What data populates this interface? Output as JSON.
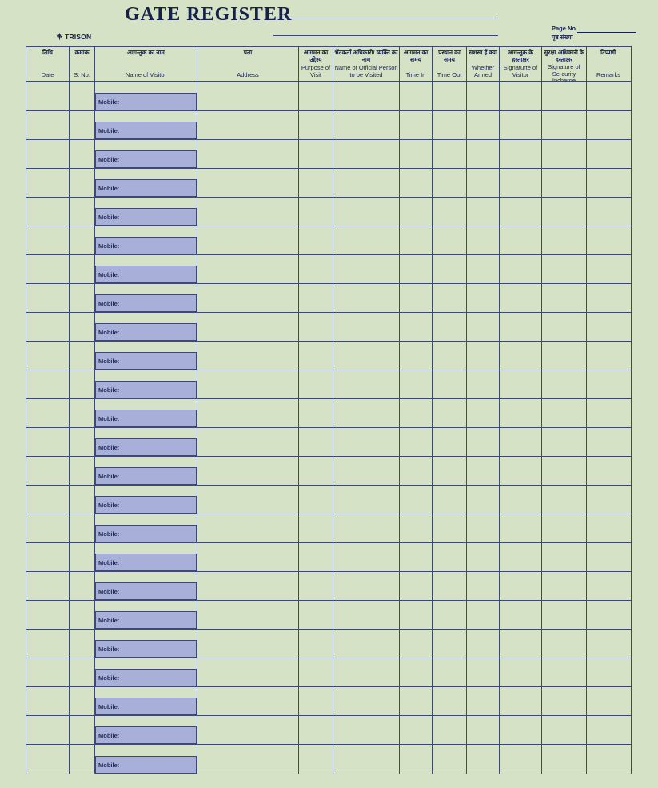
{
  "page": {
    "title": "GATE REGISTER",
    "brand": "TRISON",
    "page_no_label": "Page No.",
    "page_no_label_hindi": "पृष्ठ संख्या"
  },
  "table": {
    "columns": [
      {
        "hi": "तिथि",
        "en": "Date"
      },
      {
        "hi": "क्रमांक",
        "en": "S. No."
      },
      {
        "hi": "आगन्तुक का नाम",
        "en": "Name of Visitor"
      },
      {
        "hi": "पता",
        "en": "Address"
      },
      {
        "hi": "आगमन का उद्देश्य",
        "en": "Purpose of Visit"
      },
      {
        "hi": "भेंटकर्ता अधिकारी/ व्यक्ति का नाम",
        "en": "Name of Official Person to be Visited"
      },
      {
        "hi": "आगमन का समय",
        "en": "Time In"
      },
      {
        "hi": "प्रस्थान का समय",
        "en": "Time Out"
      },
      {
        "hi": "सशस्त्र हैं क्या",
        "en": "Whether Armed"
      },
      {
        "hi": "आगन्तुक के हस्ताक्षर",
        "en": "Signaturte of Visitor"
      },
      {
        "hi": "सुरक्षा अधिकारी के हस्ताक्षर",
        "en": "Signature of Se-curity Incharge"
      },
      {
        "hi": "टिप्पणी",
        "en": "Remarks"
      }
    ],
    "row_count": 24,
    "mobile_label": "Mobile:",
    "rows_content": "all rows empty / blank form"
  },
  "colors": {
    "background": "#d6e2c5",
    "line": "#3d4970",
    "ink": "#16214a",
    "mobile_fill": "#a8b0da"
  }
}
